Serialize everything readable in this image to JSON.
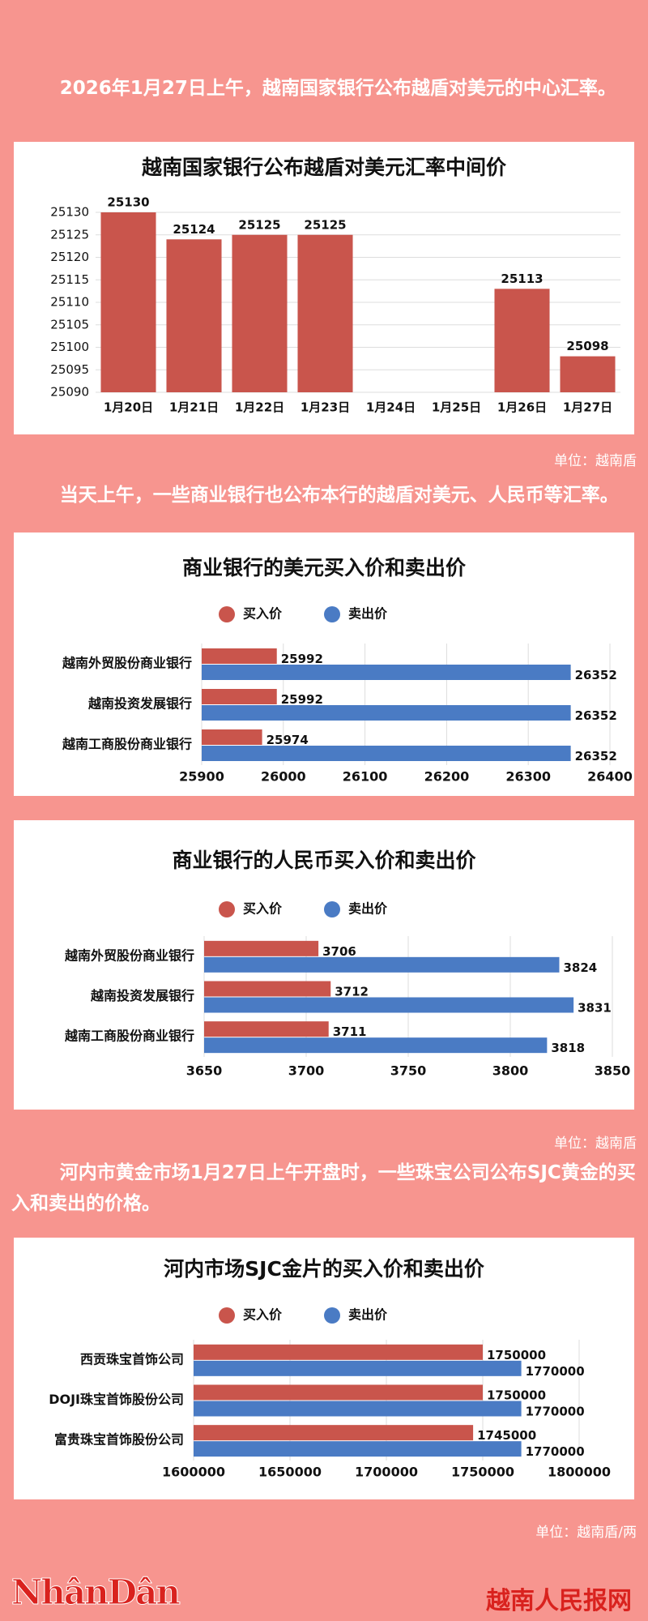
{
  "texts": {
    "para1": "2026年1月27日上午，越南国家银行公布越盾对美元的中心汇率。",
    "unit1": "单位：越南盾",
    "para2": "当天上午，一些商业银行也公布本行的越盾对美元、人民币等汇率。",
    "unit2": "单位：越南盾",
    "para3": "河内市黄金市场1月27日上午开盘时，一些珠宝公司公布SJC黄金的买入和卖出的价格。",
    "unit3": "单位：越南盾/两"
  },
  "footer": {
    "logo": "NhânDân",
    "site": "越南人民报网"
  },
  "chart_data": [
    {
      "type": "bar",
      "title": "越南国家银行公布越盾对美元汇率中间价",
      "categories": [
        "1月20日",
        "1月21日",
        "1月22日",
        "1月23日",
        "1月24日",
        "1月25日",
        "1月26日",
        "1月27日"
      ],
      "values": [
        25130,
        25124,
        25125,
        25125,
        null,
        null,
        25113,
        25098
      ],
      "color": "#c9554c",
      "ylim": [
        25090,
        25130
      ],
      "yticks": [
        25090,
        25095,
        25100,
        25105,
        25110,
        25115,
        25120,
        25125,
        25130
      ],
      "grid": true
    },
    {
      "type": "barh",
      "title": "商业银行的美元买入价和卖出价",
      "categories": [
        "越南外贸股份商业银行",
        "越南投资发展银行",
        "越南工商股份商业银行"
      ],
      "series": [
        {
          "name": "买入价",
          "color": "#c9554c",
          "values": [
            25992,
            25992,
            25974
          ]
        },
        {
          "name": "卖出价",
          "color": "#4a7bc4",
          "values": [
            26352,
            26352,
            26352
          ]
        }
      ],
      "xlim": [
        25900,
        26400
      ],
      "xticks": [
        25900,
        26000,
        26100,
        26200,
        26300,
        26400
      ],
      "grid": true,
      "legend": "top"
    },
    {
      "type": "barh",
      "title": "商业银行的人民币买入价和卖出价",
      "categories": [
        "越南外贸股份商业银行",
        "越南投资发展银行",
        "越南工商股份商业银行"
      ],
      "series": [
        {
          "name": "买入价",
          "color": "#c9554c",
          "values": [
            3706,
            3712,
            3711
          ]
        },
        {
          "name": "卖出价",
          "color": "#4a7bc4",
          "values": [
            3824,
            3831,
            3818
          ]
        }
      ],
      "xlim": [
        3650,
        3850
      ],
      "xticks": [
        3650,
        3700,
        3750,
        3800,
        3850
      ],
      "grid": true,
      "legend": "top"
    },
    {
      "type": "barh",
      "title": "河内市场SJC金片的买入价和卖出价",
      "categories": [
        "西贡珠宝首饰公司",
        "DOJI珠宝首饰股份公司",
        "富贵珠宝首饰股份公司"
      ],
      "series": [
        {
          "name": "买入价",
          "color": "#c9554c",
          "values": [
            1750000,
            1750000,
            1745000
          ]
        },
        {
          "name": "卖出价",
          "color": "#4a7bc4",
          "values": [
            1770000,
            1770000,
            1770000
          ]
        }
      ],
      "xlim": [
        1600000,
        1800000
      ],
      "xticks": [
        1600000,
        1650000,
        1700000,
        1750000,
        1800000
      ],
      "grid": true,
      "legend": "top"
    }
  ]
}
